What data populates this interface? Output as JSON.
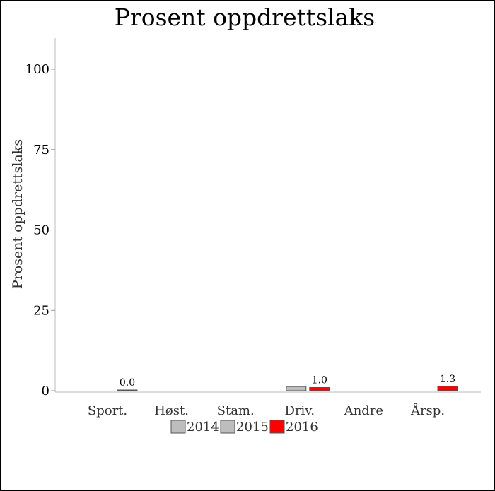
{
  "chart_data": {
    "type": "bar",
    "title": "Prosent oppdrettslaks",
    "ylabel": "Prosent oppdrettslaks",
    "xlabel": "",
    "ylim": [
      0,
      110
    ],
    "yticks": [
      0,
      25,
      50,
      75,
      100
    ],
    "categories": [
      "Sport.",
      "Høst.",
      "Stam.",
      "Driv.",
      "Andre",
      "Årsp."
    ],
    "series": [
      {
        "name": "2014",
        "color": "#bdbdbd",
        "values": [
          null,
          null,
          null,
          null,
          null,
          null
        ]
      },
      {
        "name": "2015",
        "color": "#bdbdbd",
        "values": [
          null,
          null,
          null,
          1.3,
          null,
          null
        ]
      },
      {
        "name": "2016",
        "color": "#ff0000",
        "values": [
          0.0,
          null,
          null,
          1.0,
          null,
          1.3
        ]
      }
    ],
    "data_labels": [
      {
        "series": "2016",
        "category": "Sport.",
        "text": "0.0"
      },
      {
        "series": "2016",
        "category": "Driv.",
        "text": "1.0"
      },
      {
        "series": "2016",
        "category": "Årsp.",
        "text": "1.3"
      }
    ],
    "legend": {
      "placement": "bottom",
      "entries": [
        "2014",
        "2015",
        "2016"
      ]
    },
    "grid": false
  }
}
